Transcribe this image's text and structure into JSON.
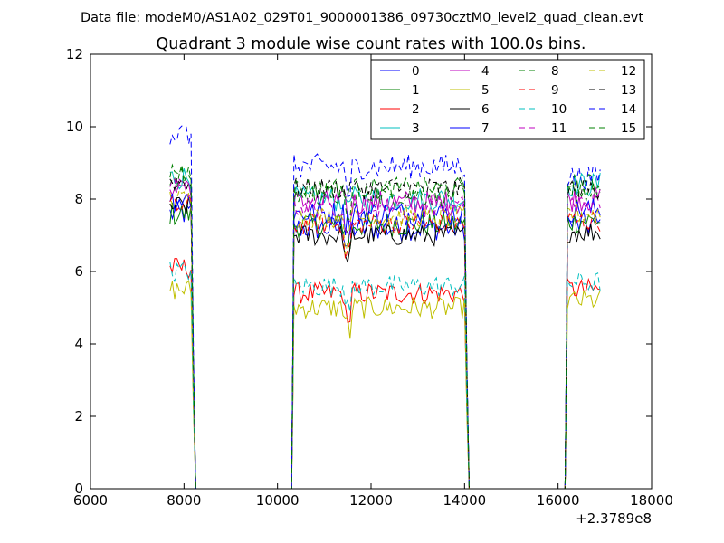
{
  "chart_data": {
    "type": "line",
    "suptitle": "Data file: modeM0/AS1A02_029T01_9000001386_09730cztM0_level2_quad_clean.evt",
    "title": "Quadrant 3 module wise count rates with 100.0s bins.",
    "xlabel": "",
    "ylabel": "",
    "x_offset_label": "+2.3789e8",
    "xlim": [
      6000,
      18000
    ],
    "ylim": [
      0,
      12
    ],
    "xticks": [
      6000,
      8000,
      10000,
      12000,
      14000,
      16000,
      18000
    ],
    "xtick_labels": [
      "6000",
      "8000",
      "10000",
      "12000",
      "14000",
      "16000",
      "18000"
    ],
    "yticks": [
      0,
      2,
      4,
      6,
      8,
      10,
      12
    ],
    "ytick_labels": [
      "0",
      "2",
      "4",
      "6",
      "8",
      "10",
      "12"
    ],
    "grid": false,
    "legend_position": "top-right",
    "legend_columns": 4,
    "segments": [
      {
        "start": 7700,
        "end": 8150
      },
      {
        "start": 10350,
        "end": 14000
      },
      {
        "start": 16200,
        "end": 16900
      }
    ],
    "gaps": [
      [
        8250,
        10300
      ],
      [
        14100,
        16150
      ]
    ],
    "bin_seconds": 100.0,
    "series": [
      {
        "name": "0",
        "color": "#0000ff",
        "style": "solid",
        "level": 7.3,
        "base": [
          7.6,
          7.2,
          7.3
        ],
        "noise": 0.35
      },
      {
        "name": "1",
        "color": "#008000",
        "style": "solid",
        "level": 7.4,
        "base": [
          7.6,
          7.3,
          7.4
        ],
        "noise": 0.35
      },
      {
        "name": "2",
        "color": "#ff0000",
        "style": "solid",
        "level": 5.4,
        "base": [
          6.1,
          5.4,
          5.5
        ],
        "noise": 0.3
      },
      {
        "name": "3",
        "color": "#00bfbf",
        "style": "solid",
        "level": 8.0,
        "base": [
          8.6,
          8.0,
          8.4
        ],
        "noise": 0.35
      },
      {
        "name": "4",
        "color": "#bf00bf",
        "style": "solid",
        "level": 7.9,
        "base": [
          8.4,
          7.9,
          8.0
        ],
        "noise": 0.35
      },
      {
        "name": "5",
        "color": "#bfbf00",
        "style": "solid",
        "level": 5.0,
        "base": [
          5.5,
          5.0,
          5.2
        ],
        "noise": 0.3
      },
      {
        "name": "6",
        "color": "#000000",
        "style": "solid",
        "level": 7.0,
        "base": [
          7.8,
          7.0,
          7.1
        ],
        "noise": 0.3
      },
      {
        "name": "7",
        "color": "#0000ff",
        "style": "solid",
        "level": 7.6,
        "base": [
          8.0,
          7.6,
          7.7
        ],
        "noise": 0.35
      },
      {
        "name": "8",
        "color": "#008000",
        "style": "dashed",
        "level": 8.1,
        "base": [
          8.6,
          8.1,
          8.2
        ],
        "noise": 0.3
      },
      {
        "name": "9",
        "color": "#ff0000",
        "style": "dashed",
        "level": 7.3,
        "base": [
          7.8,
          7.3,
          7.4
        ],
        "noise": 0.3
      },
      {
        "name": "10",
        "color": "#00bfbf",
        "style": "dashed",
        "level": 5.6,
        "base": [
          6.0,
          5.6,
          5.7
        ],
        "noise": 0.3
      },
      {
        "name": "11",
        "color": "#bf00bf",
        "style": "dashed",
        "level": 7.8,
        "base": [
          8.3,
          7.8,
          7.9
        ],
        "noise": 0.3
      },
      {
        "name": "12",
        "color": "#bfbf00",
        "style": "dashed",
        "level": 7.5,
        "base": [
          8.0,
          7.5,
          7.6
        ],
        "noise": 0.3
      },
      {
        "name": "13",
        "color": "#000000",
        "style": "dashed",
        "level": 8.3,
        "base": [
          8.5,
          8.3,
          8.3
        ],
        "noise": 0.3
      },
      {
        "name": "14",
        "color": "#0000ff",
        "style": "dashed",
        "level": 8.9,
        "base": [
          9.8,
          8.9,
          8.6
        ],
        "noise": 0.35
      },
      {
        "name": "15",
        "color": "#008000",
        "style": "dashed",
        "level": 8.3,
        "base": [
          8.8,
          8.3,
          8.4
        ],
        "noise": 0.3
      }
    ]
  }
}
